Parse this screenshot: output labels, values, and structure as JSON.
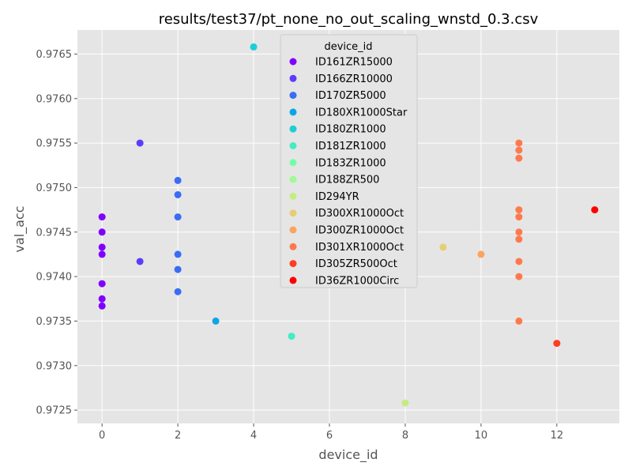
{
  "chart_data": {
    "type": "scatter",
    "title": "results/test37/pt_none_no_out_scaling_wnstd_0.3.csv",
    "xlabel": "device_id",
    "ylabel": "val_acc",
    "xlim": [
      -0.65,
      13.65
    ],
    "ylim": [
      0.97235,
      0.97677
    ],
    "xticks": [
      0,
      2,
      4,
      6,
      8,
      10,
      12
    ],
    "yticks": [
      0.9725,
      0.973,
      0.9735,
      0.974,
      0.9745,
      0.975,
      0.9755,
      0.976,
      0.9765
    ],
    "ytick_labels": [
      "0.9725",
      "0.9730",
      "0.9735",
      "0.9740",
      "0.9745",
      "0.9750",
      "0.9755",
      "0.9760",
      "0.9765"
    ],
    "xtick_labels": [
      "0",
      "2",
      "4",
      "6",
      "8",
      "10",
      "12"
    ],
    "grid": true,
    "background": "#e5e5e5",
    "legend": {
      "title": "device_id",
      "placement": "top-center"
    },
    "series": [
      {
        "name": "ID161ZR15000",
        "color": "#8000ff",
        "x": [
          0,
          0,
          0,
          0,
          0,
          0,
          0
        ],
        "y": [
          0.97467,
          0.9745,
          0.97433,
          0.97425,
          0.97392,
          0.97375,
          0.97367
        ]
      },
      {
        "name": "ID166ZR10000",
        "color": "#5a3dfc",
        "x": [
          1,
          1
        ],
        "y": [
          0.9755,
          0.97417
        ]
      },
      {
        "name": "ID170ZR5000",
        "color": "#3a6cf5",
        "x": [
          2,
          2,
          2,
          2,
          2,
          2
        ],
        "y": [
          0.97508,
          0.97492,
          0.97467,
          0.97425,
          0.97408,
          0.97383
        ]
      },
      {
        "name": "ID180XR1000Star",
        "color": "#0ea5e6",
        "x": [
          3
        ],
        "y": [
          0.9735
        ]
      },
      {
        "name": "ID180ZR1000",
        "color": "#1bcfd4",
        "x": [
          4
        ],
        "y": [
          0.97658
        ]
      },
      {
        "name": "ID181ZR1000",
        "color": "#44ecc0",
        "x": [
          5
        ],
        "y": [
          0.97333
        ]
      },
      {
        "name": "ID183ZR1000",
        "color": "#74feaa",
        "x": [
          5
        ],
        "y": [
          0.97408
        ]
      },
      {
        "name": "ID188ZR500",
        "color": "#a0fb92",
        "x": [
          5,
          7
        ],
        "y": [
          0.97467,
          0.974
        ]
      },
      {
        "name": "ID294YR",
        "color": "#c4ec80",
        "x": [
          5,
          8
        ],
        "y": [
          0.975,
          0.97258
        ]
      },
      {
        "name": "ID300XR1000Oct",
        "color": "#e4cf73",
        "x": [
          8,
          9
        ],
        "y": [
          0.97517,
          0.97433
        ]
      },
      {
        "name": "ID300ZR1000Oct",
        "color": "#fca460",
        "x": [
          10
        ],
        "y": [
          0.97425
        ]
      },
      {
        "name": "ID301XR1000Oct",
        "color": "#fd7a4d",
        "x": [
          11,
          11,
          11,
          11,
          11,
          11,
          11,
          11,
          11,
          11
        ],
        "y": [
          0.9755,
          0.97542,
          0.97533,
          0.97475,
          0.97467,
          0.9745,
          0.97442,
          0.97417,
          0.974,
          0.9735
        ]
      },
      {
        "name": "ID305ZR500Oct",
        "color": "#ff3d23",
        "x": [
          12
        ],
        "y": [
          0.97325
        ]
      },
      {
        "name": "ID36ZR1000Circ",
        "color": "#ff0000",
        "x": [
          13
        ],
        "y": [
          0.97475
        ]
      }
    ]
  }
}
